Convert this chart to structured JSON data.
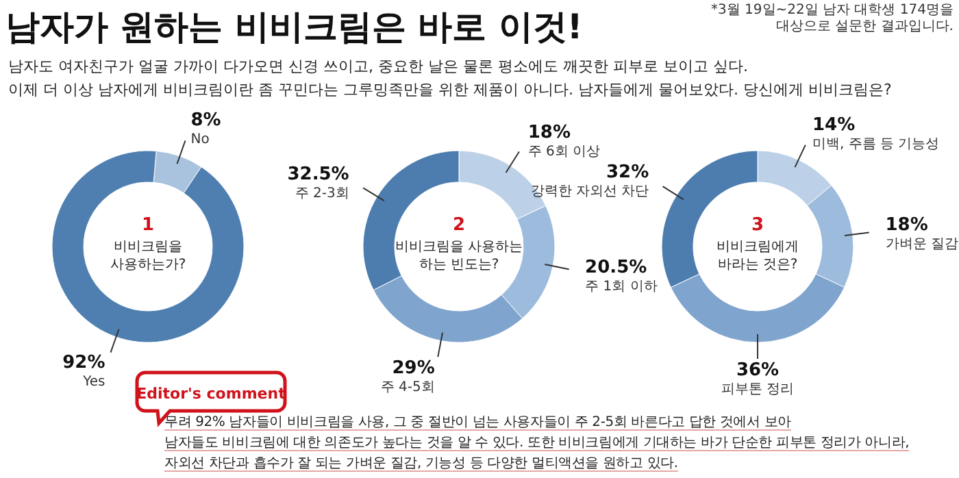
{
  "chart_data": [
    {
      "type": "other",
      "title": "남자가 원하는 비비크림은 바로 이것!",
      "subtitle": "남자도 여자친구가 얼굴 가까이 다가오면 신경 쓰이고, 중요한 날은 물론 평소에도 깨끗한 피부로 보이고 싶다.\n이제 더 이상 남자에게 비비크림이란 좀 꾸민다는 그루밍족만을 위한 제품이 아니다. 남자들에게 물어보았다. 당신에게 비비크림은?",
      "annotations": [
        "*3월 19일~22일 남자 대학생 174명을\n대상으로 설문한 결과입니다."
      ]
    },
    {
      "type": "donut",
      "title": "1",
      "subtitle": "비비크림을\n사용하는가?",
      "categories": [
        "No",
        "Yes"
      ],
      "values": [
        8,
        92
      ],
      "value_labels": [
        "8%",
        "92%"
      ],
      "colors": [
        "#a9c2dd",
        "#4f7fb0"
      ]
    },
    {
      "type": "donut",
      "title": "2",
      "subtitle": "비비크림을 사용하는\n하는 빈도는?",
      "categories": [
        "주 6회 이상",
        "주 1회 이하",
        "주 4-5회",
        "주 2-3회"
      ],
      "values": [
        18,
        20.5,
        29,
        32.5
      ],
      "value_labels": [
        "18%",
        "20.5%",
        "29%",
        "32.5%"
      ],
      "colors": [
        "#bcd1e8",
        "#9dbbdc",
        "#7fa4cd",
        "#4d7daf"
      ]
    },
    {
      "type": "donut",
      "title": "3",
      "subtitle": "비비크림에게\n바라는 것은?",
      "categories": [
        "미백, 주름 등 기능성",
        "가벼운 질감",
        "피부톤 정리",
        "강력한 자외선 차단"
      ],
      "values": [
        14,
        18,
        36,
        32
      ],
      "value_labels": [
        "14%",
        "18%",
        "36%",
        "32%"
      ],
      "colors": [
        "#bcd1e8",
        "#9dbbdc",
        "#7fa4cd",
        "#4d7daf"
      ]
    },
    {
      "type": "other",
      "title": "Editor's comment",
      "annotations": [
        "무려 92% 남자들이 비비크림을 사용, 그 중 절반이 넘는 사용자들이 주 2-5회 바른다고 답한 것에서 보아",
        "남자들도 비비크림에 대한 의존도가 높다는 것을 알 수 있다. 또한 비비크림에게 기대하는 바가 단순한 피부톤 정리가 아니라,",
        "자외선 차단과 흡수가 잘 되는 가벼운 질감, 기능성 등 다양한 멀티액션을 원하고 있다."
      ]
    }
  ]
}
